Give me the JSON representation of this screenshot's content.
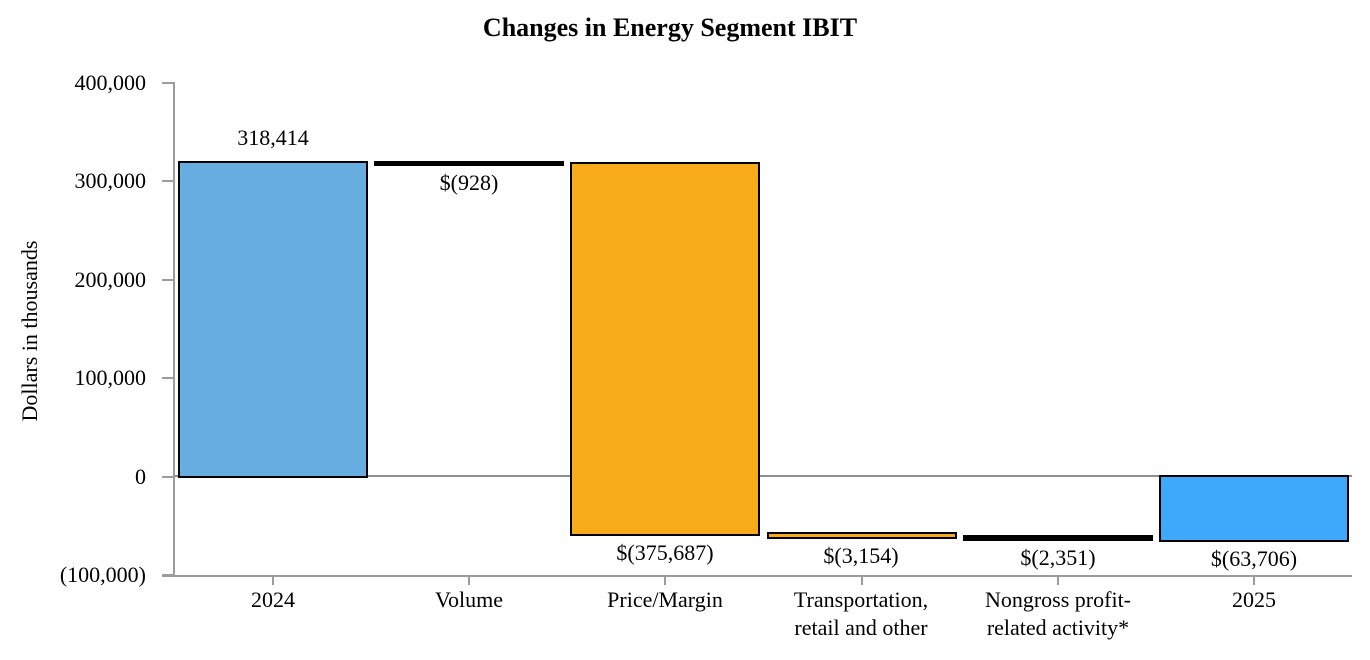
{
  "chart_data": {
    "type": "bar",
    "subtype": "waterfall",
    "title": "Changes in Energy Segment IBIT",
    "ylabel": "Dollars in thousands",
    "xlabel": "",
    "ylim": [
      -100000,
      400000
    ],
    "grid": "zero-line-only",
    "legend": "none",
    "y_ticks": [
      {
        "value": 400000,
        "label": "400,000"
      },
      {
        "value": 300000,
        "label": "300,000"
      },
      {
        "value": 200000,
        "label": "200,000"
      },
      {
        "value": 100000,
        "label": "100,000"
      },
      {
        "value": 0,
        "label": "0"
      },
      {
        "value": -100000,
        "label": "(100,000)"
      }
    ],
    "bars": [
      {
        "category_lines": [
          "2024"
        ],
        "role": "total",
        "value": 318414,
        "label": "318,414",
        "label_position": "above",
        "start": 0,
        "end": 318414,
        "color": "#68ADE0"
      },
      {
        "category_lines": [
          "Volume"
        ],
        "role": "decrease",
        "value": -928,
        "label": "$(928)",
        "label_position": "below",
        "start": 318414,
        "end": 317486,
        "color": "#000000"
      },
      {
        "category_lines": [
          "Price/Margin"
        ],
        "role": "decrease",
        "value": -375687,
        "label": "$(375,687)",
        "label_position": "below",
        "start": 317486,
        "end": -58201,
        "color": "#F8AB18"
      },
      {
        "category_lines": [
          "Transportation,",
          "retail and other"
        ],
        "role": "decrease",
        "value": -3154,
        "label": "$(3,154)",
        "label_position": "below",
        "start": -58201,
        "end": -61355,
        "color": "#F8AB18"
      },
      {
        "category_lines": [
          "Nongross profit-",
          "related activity*"
        ],
        "role": "decrease",
        "value": -2351,
        "label": "$(2,351)",
        "label_position": "below",
        "start": -61355,
        "end": -63706,
        "color": "#000000"
      },
      {
        "category_lines": [
          "2025"
        ],
        "role": "total",
        "value": -63706,
        "label": "$(63,706)",
        "label_position": "below",
        "start": -63706,
        "end": 0,
        "color": "#3EA8FA"
      }
    ],
    "colors": {
      "bar_2024": "#68ADE0",
      "bar_2025": "#3EA8FA",
      "bar_change": "#F8AB18",
      "bar_border": "#000000",
      "axis": "#9C9C9C"
    }
  }
}
